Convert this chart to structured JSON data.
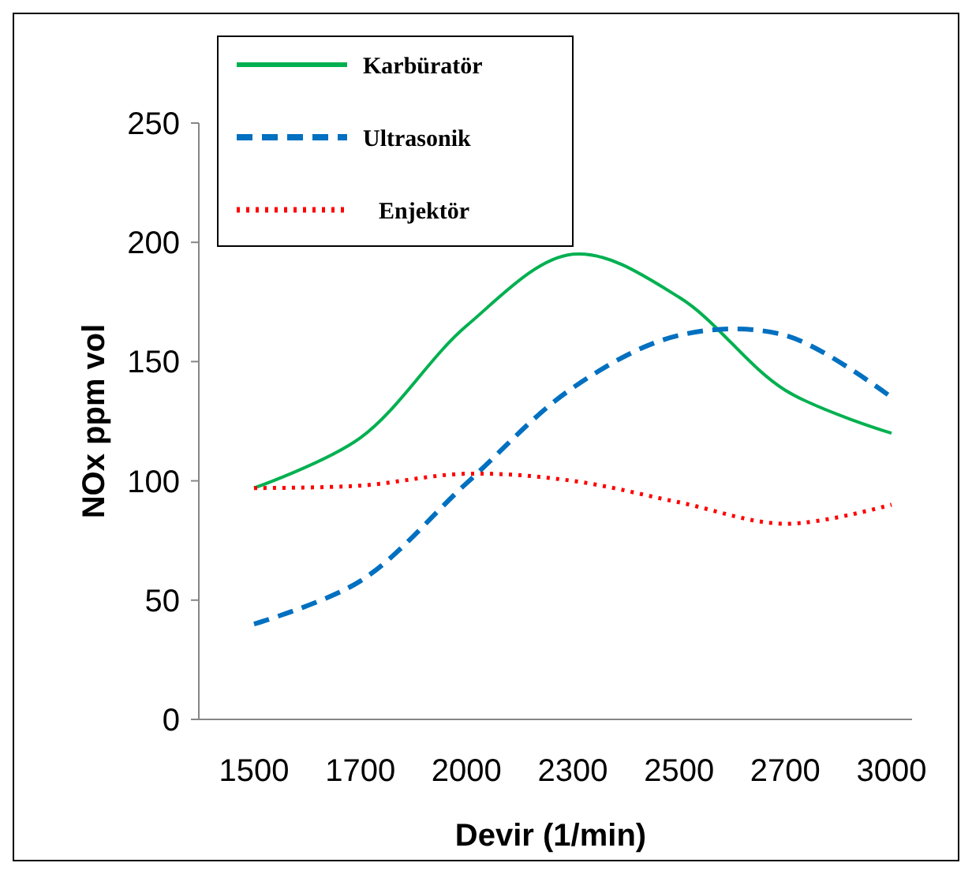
{
  "chart_data": {
    "type": "line",
    "xlabel": "Devir (1/min)",
    "ylabel": "NOx ppm vol",
    "categories": [
      "1500",
      "1700",
      "2000",
      "2300",
      "2500",
      "2700",
      "3000"
    ],
    "ylim": [
      0,
      250
    ],
    "yticks": [
      0,
      50,
      100,
      150,
      200,
      250
    ],
    "grid": false,
    "legend": "top left",
    "series": [
      {
        "name": "Karbüratör",
        "color": "#00b050",
        "line_style": "solid",
        "values": [
          97,
          118,
          165,
          195,
          177,
          138,
          120
        ]
      },
      {
        "name": "Ultrasonik",
        "color": "#0070c0",
        "line_style": "dashed",
        "values": [
          40,
          58,
          99,
          139,
          161,
          161,
          135
        ]
      },
      {
        "name": "Enjektör",
        "color": "#ff0000",
        "line_style": "dotted",
        "values": [
          97,
          98,
          103,
          100,
          91,
          82,
          90
        ]
      }
    ]
  }
}
